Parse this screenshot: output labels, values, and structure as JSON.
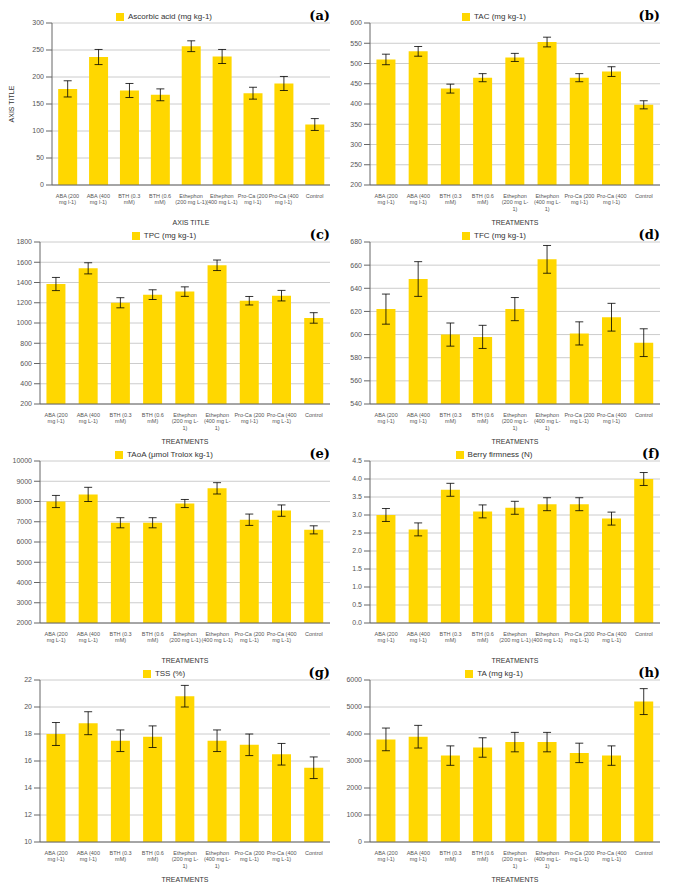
{
  "chart_data": [
    {
      "type": "bar",
      "xlabel": "AXIS TITLE",
      "ylabel": "AXIS TITLE",
      "annotations": [
        "(a)"
      ],
      "grid": true,
      "legend": "upper center",
      "categories": [
        "ABA (200\nmg l-1)",
        "ABA (400\nmg l-1)",
        "BTH (0.3\nmM)",
        "BTH (0.6\nmM)",
        "Ethephon\n(200 mg L-1)",
        "Ethephon\n(400 mg L-1)",
        "Pro-Ca (200\nmg l-1)",
        "Pro-Ca (400\nmg l-1)",
        "Control"
      ],
      "series": [
        {
          "name": "Ascorbic acid (mg kg-1)",
          "color": "#FFD700",
          "values": [
            178,
            237,
            175,
            167,
            257,
            238,
            170,
            188,
            112
          ],
          "errors": [
            15,
            14,
            13,
            11,
            10,
            13,
            11,
            13,
            11
          ]
        }
      ],
      "ylim": [
        0,
        300
      ],
      "yticks": [
        0,
        50,
        100,
        150,
        200,
        250,
        300
      ]
    },
    {
      "type": "bar",
      "xlabel": "TREATMENTS",
      "annotations": [
        "(b)"
      ],
      "grid": true,
      "legend": "upper center",
      "categories": [
        "ABA (200\nmg l-1)",
        "ABA (400\nmg l-1)",
        "BTH (0.3\nmM)",
        "BTH (0.6\nmM)",
        "Ethephon\n(200 mg L-\n1)",
        "Ethephon\n(400 mg L-\n1)",
        "Pro-Ca (200\nmg l-1)",
        "Pro-Ca (400\nmg l-1)",
        "Control"
      ],
      "series": [
        {
          "name": "TAC (mg kg-1)",
          "color": "#FFD700",
          "values": [
            510,
            530,
            438,
            465,
            515,
            553,
            465,
            480,
            398
          ],
          "errors": [
            13,
            12,
            11,
            10,
            10,
            12,
            10,
            12,
            10
          ]
        }
      ],
      "ylim": [
        200,
        600
      ],
      "yticks": [
        200,
        250,
        300,
        350,
        400,
        450,
        500,
        550,
        600
      ]
    },
    {
      "type": "bar",
      "xlabel": "TREATMENTS",
      "annotations": [
        "(c)"
      ],
      "grid": true,
      "legend": "upper center",
      "categories": [
        "ABA (200\nmg l-1)",
        "ABA (400\nmg L-1)",
        "BTH (0.3\nmM)",
        "BTH (0.6\nmM)",
        "Ethephon\n(200 mg L-\n1)",
        "Ethephon\n(400 mg L-\n1)",
        "Pro-Ca (200\nmg l-1)",
        "Pro-Ca (400\nmg L-1)",
        "Control"
      ],
      "series": [
        {
          "name": "TPC (mg kg-1)",
          "color": "#FFD700",
          "values": [
            1385,
            1540,
            1200,
            1280,
            1310,
            1570,
            1220,
            1270,
            1050
          ],
          "errors": [
            65,
            55,
            50,
            48,
            47,
            52,
            42,
            52,
            52
          ]
        }
      ],
      "ylim": [
        200,
        1800
      ],
      "yticks": [
        200,
        400,
        600,
        800,
        1000,
        1200,
        1400,
        1600,
        1800
      ]
    },
    {
      "type": "bar",
      "xlabel": "TREATMENTS",
      "annotations": [
        "(d)"
      ],
      "grid": true,
      "legend": "upper center",
      "categories": [
        "ABA (200\nmg l-1)",
        "ABA (400\nmg l-1)",
        "BTH (0.3\nmM)",
        "BTH (0.6\nmM)",
        "Ethephon\n(200 mg L-\n1)",
        "Ethephon\n(400 mg L-\n1)",
        "Pro-Ca (200\nmg L-1)",
        "Pro-Ca (400\nmg l-1)",
        "Control"
      ],
      "series": [
        {
          "name": "TFC (mg kg-1)",
          "color": "#FFD700",
          "values": [
            622,
            648,
            600,
            598,
            622,
            665,
            601,
            615,
            593
          ],
          "errors": [
            13,
            15,
            10,
            10,
            10,
            12,
            10,
            12,
            12
          ]
        }
      ],
      "ylim": [
        540,
        680
      ],
      "yticks": [
        540,
        560,
        580,
        600,
        620,
        640,
        660,
        680
      ]
    },
    {
      "type": "bar",
      "xlabel": "TREATMENTS",
      "annotations": [
        "(e)"
      ],
      "grid": true,
      "legend": "upper center",
      "categories": [
        "ABA (200\nmg L-1)",
        "ABA (400\nmg L-1)",
        "BTH (0.3\nmM)",
        "BTH (0.6\nmM)",
        "Ethephon\n(200 mg L-1)",
        "Ethephon\n(400 mg L-1)",
        "Pro-Ca (200\nmg L-1)",
        "Pro-Ca (400\nmg L-1)",
        "Control"
      ],
      "series": [
        {
          "name": "TAoA (μmol Trolox kg-1)",
          "color": "#FFD700",
          "values": [
            8000,
            8350,
            6950,
            6950,
            7900,
            8650,
            7100,
            7550,
            6600
          ],
          "errors": [
            300,
            350,
            250,
            250,
            200,
            280,
            280,
            280,
            200
          ]
        }
      ],
      "ylim": [
        2000,
        10000
      ],
      "yticks": [
        2000,
        3000,
        4000,
        5000,
        6000,
        7000,
        8000,
        9000,
        10000
      ]
    },
    {
      "type": "bar",
      "xlabel": "TREATMENTS",
      "annotations": [
        "(f)"
      ],
      "grid": true,
      "legend": "upper center",
      "categories": [
        "ABA (200\nmg l-1)",
        "ABA (400\nmg l-1)",
        "BTH (0.3\nmM)",
        "BTH (0.6\nmM)",
        "Ethephon\n(200 mg L-1)",
        "Ethephon\n(400 mg L-1)",
        "Pro-Ca (200\nmg L-1)",
        "Pro-Ca (400\nmg L-1)",
        "Control"
      ],
      "series": [
        {
          "name": "Berry firmness (N)",
          "color": "#FFD700",
          "values": [
            3.0,
            2.6,
            3.7,
            3.1,
            3.2,
            3.3,
            3.3,
            2.9,
            4.0
          ],
          "errors": [
            0.18,
            0.18,
            0.18,
            0.18,
            0.18,
            0.18,
            0.18,
            0.18,
            0.18
          ]
        }
      ],
      "ylim": [
        0,
        4.5
      ],
      "yticks": [
        {
          "value": 0,
          "label": "0.0"
        },
        0.5,
        {
          "value": 1,
          "label": "1.0"
        },
        1.5,
        {
          "value": 2,
          "label": "2.0"
        },
        2.5,
        {
          "value": 3,
          "label": "3.0"
        },
        3.5,
        {
          "value": 4,
          "label": "4.0"
        },
        4.5
      ]
    },
    {
      "type": "bar",
      "xlabel": "TREATMENTS",
      "annotations": [
        "(g)"
      ],
      "grid": true,
      "legend": "upper center",
      "categories": [
        "ABA (200\nmg l-1)",
        "ABA (400\nmg l-1)",
        "BTH (0.3\nmM)",
        "BTH (0.6\nmM)",
        "Ethephon\n(200 mg L-\n1)",
        "Ethephon\n(400 mg L-\n1)",
        "Pro-Ca (200\nmg L-1)",
        "Pro-Ca (400\nmg L-1)",
        "Control"
      ],
      "series": [
        {
          "name": "TSS (%)",
          "color": "#FFD700",
          "values": [
            18.0,
            18.8,
            17.5,
            17.8,
            20.8,
            17.5,
            17.2,
            16.5,
            15.5
          ],
          "errors": [
            0.85,
            0.85,
            0.8,
            0.8,
            0.8,
            0.8,
            0.8,
            0.8,
            0.8
          ]
        }
      ],
      "ylim": [
        10,
        22
      ],
      "yticks": [
        10,
        12,
        14,
        16,
        18,
        20,
        22
      ]
    },
    {
      "type": "bar",
      "xlabel": "TREATMENTS",
      "annotations": [
        "(h)"
      ],
      "grid": true,
      "legend": "upper center",
      "categories": [
        "ABA (200\nmg l-1)",
        "ABA (400\nmg l-1)",
        "BTH (0.3\nmM)",
        "BTH (0.6\nmM)",
        "Ethephon\n(200 mg L-\n1)",
        "Ethephon\n(400 mg L-\n1)",
        "Pro-Ca (200\nmg L-1)",
        "Pro-Ca (400\nmg L-1)",
        "Control"
      ],
      "series": [
        {
          "name": "TA (mg kg-1)",
          "color": "#FFD700",
          "values": [
            3800,
            3900,
            3200,
            3500,
            3700,
            3700,
            3300,
            3200,
            5200
          ],
          "errors": [
            420,
            420,
            360,
            360,
            360,
            360,
            360,
            360,
            480
          ]
        }
      ],
      "ylim": [
        0,
        6000
      ],
      "yticks": [
        0,
        1000,
        2000,
        3000,
        4000,
        5000,
        6000
      ]
    }
  ]
}
